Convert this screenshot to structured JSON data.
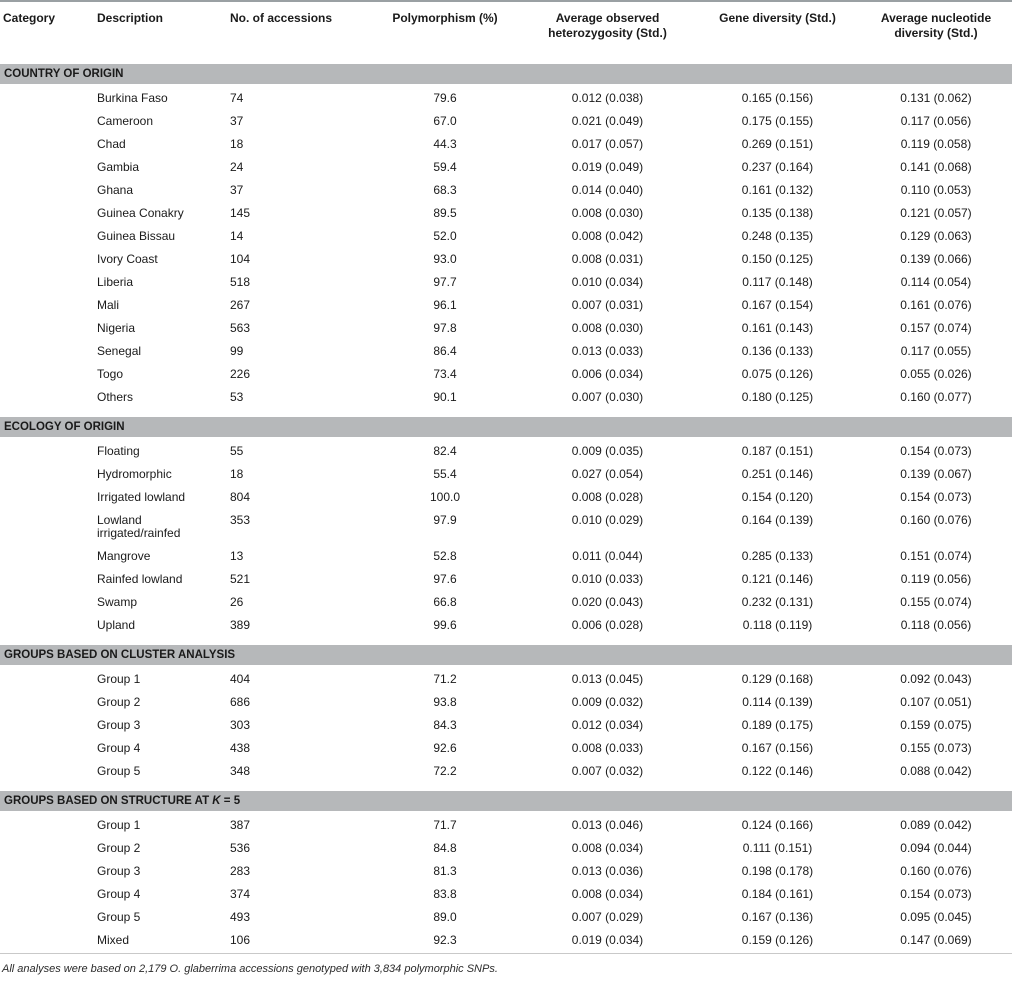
{
  "table": {
    "columns": [
      {
        "label": "Category",
        "align": "left"
      },
      {
        "label": "Description",
        "align": "left"
      },
      {
        "label": "No. of accessions",
        "align": "left"
      },
      {
        "label": "Polymorphism (%)",
        "align": "center"
      },
      {
        "label": "Average observed heterozygosity (Std.)",
        "align": "center"
      },
      {
        "label": "Gene diversity (Std.)",
        "align": "center"
      },
      {
        "label": "Average nucleotide diversity (Std.)",
        "align": "center"
      }
    ],
    "sections": [
      {
        "header": "COUNTRY OF ORIGIN",
        "rows": [
          [
            "Burkina Faso",
            "74",
            "79.6",
            "0.012 (0.038)",
            "0.165 (0.156)",
            "0.131 (0.062)"
          ],
          [
            "Cameroon",
            "37",
            "67.0",
            "0.021 (0.049)",
            "0.175 (0.155)",
            "0.117 (0.056)"
          ],
          [
            "Chad",
            "18",
            "44.3",
            "0.017 (0.057)",
            "0.269 (0.151)",
            "0.119 (0.058)"
          ],
          [
            "Gambia",
            "24",
            "59.4",
            "0.019 (0.049)",
            "0.237 (0.164)",
            "0.141 (0.068)"
          ],
          [
            "Ghana",
            "37",
            "68.3",
            "0.014 (0.040)",
            "0.161 (0.132)",
            "0.110 (0.053)"
          ],
          [
            "Guinea Conakry",
            "145",
            "89.5",
            "0.008 (0.030)",
            "0.135 (0.138)",
            "0.121 (0.057)"
          ],
          [
            "Guinea Bissau",
            "14",
            "52.0",
            "0.008 (0.042)",
            "0.248 (0.135)",
            "0.129 (0.063)"
          ],
          [
            "Ivory Coast",
            "104",
            "93.0",
            "0.008 (0.031)",
            "0.150 (0.125)",
            "0.139 (0.066)"
          ],
          [
            "Liberia",
            "518",
            "97.7",
            "0.010 (0.034)",
            "0.117 (0.148)",
            "0.114 (0.054)"
          ],
          [
            "Mali",
            "267",
            "96.1",
            "0.007 (0.031)",
            "0.167 (0.154)",
            "0.161 (0.076)"
          ],
          [
            "Nigeria",
            "563",
            "97.8",
            "0.008 (0.030)",
            "0.161 (0.143)",
            "0.157 (0.074)"
          ],
          [
            "Senegal",
            "99",
            "86.4",
            "0.013 (0.033)",
            "0.136 (0.133)",
            "0.117 (0.055)"
          ],
          [
            "Togo",
            "226",
            "73.4",
            "0.006 (0.034)",
            "0.075 (0.126)",
            "0.055 (0.026)"
          ],
          [
            "Others",
            "53",
            "90.1",
            "0.007 (0.030)",
            "0.180 (0.125)",
            "0.160 (0.077)"
          ]
        ]
      },
      {
        "header": "ECOLOGY OF ORIGIN",
        "rows": [
          [
            "Floating",
            "55",
            "82.4",
            "0.009 (0.035)",
            "0.187 (0.151)",
            "0.154 (0.073)"
          ],
          [
            "Hydromorphic",
            "18",
            "55.4",
            "0.027 (0.054)",
            "0.251 (0.146)",
            "0.139 (0.067)"
          ],
          [
            "Irrigated lowland",
            "804",
            "100.0",
            "0.008 (0.028)",
            "0.154 (0.120)",
            "0.154 (0.073)"
          ],
          [
            "Lowland irrigated/rainfed",
            "353",
            "97.9",
            "0.010 (0.029)",
            "0.164 (0.139)",
            "0.160 (0.076)"
          ],
          [
            "Mangrove",
            "13",
            "52.8",
            "0.011 (0.044)",
            "0.285 (0.133)",
            "0.151 (0.074)"
          ],
          [
            "Rainfed lowland",
            "521",
            "97.6",
            "0.010 (0.033)",
            "0.121 (0.146)",
            "0.119 (0.056)"
          ],
          [
            "Swamp",
            "26",
            "66.8",
            "0.020 (0.043)",
            "0.232 (0.131)",
            "0.155 (0.074)"
          ],
          [
            "Upland",
            "389",
            "99.6",
            "0.006 (0.028)",
            "0.118 (0.119)",
            "0.118 (0.056)"
          ]
        ]
      },
      {
        "header": "GROUPS BASED ON CLUSTER ANALYSIS",
        "rows": [
          [
            "Group 1",
            "404",
            "71.2",
            "0.013 (0.045)",
            "0.129 (0.168)",
            "0.092 (0.043)"
          ],
          [
            "Group 2",
            "686",
            "93.8",
            "0.009 (0.032)",
            "0.114 (0.139)",
            "0.107 (0.051)"
          ],
          [
            "Group 3",
            "303",
            "84.3",
            "0.012 (0.034)",
            "0.189 (0.175)",
            "0.159 (0.075)"
          ],
          [
            "Group 4",
            "438",
            "92.6",
            "0.008 (0.033)",
            "0.167 (0.156)",
            "0.155 (0.073)"
          ],
          [
            "Group 5",
            "348",
            "72.2",
            "0.007 (0.032)",
            "0.122 (0.146)",
            "0.088 (0.042)"
          ]
        ]
      },
      {
        "header": "GROUPS BASED ON STRUCTURE AT K = 5",
        "header_parts": {
          "pre": "GROUPS BASED ON STRUCTURE AT ",
          "italic": "K",
          "post": " = 5"
        },
        "rows": [
          [
            "Group 1",
            "387",
            "71.7",
            "0.013 (0.046)",
            "0.124 (0.166)",
            "0.089 (0.042)"
          ],
          [
            "Group 2",
            "536",
            "84.8",
            "0.008 (0.034)",
            "0.111 (0.151)",
            "0.094 (0.044)"
          ],
          [
            "Group 3",
            "283",
            "81.3",
            "0.013 (0.036)",
            "0.198 (0.178)",
            "0.160 (0.076)"
          ],
          [
            "Group 4",
            "374",
            "83.8",
            "0.008 (0.034)",
            "0.184 (0.161)",
            "0.154 (0.073)"
          ],
          [
            "Group 5",
            "493",
            "89.0",
            "0.007 (0.029)",
            "0.167 (0.136)",
            "0.095 (0.045)"
          ],
          [
            "Mixed",
            "106",
            "92.3",
            "0.019 (0.034)",
            "0.159 (0.126)",
            "0.147 (0.069)"
          ]
        ]
      }
    ],
    "footnote": "All analyses were based on 2,179 O. glaberrima accessions genotyped with 3,834 polymorphic SNPs."
  },
  "colors": {
    "section_band": "#b6b8ba",
    "rule_top": "#9aa0a3",
    "rule_header": "#8f9598",
    "rule_bottom": "#c9c9c9",
    "text": "#1a1a1a"
  }
}
